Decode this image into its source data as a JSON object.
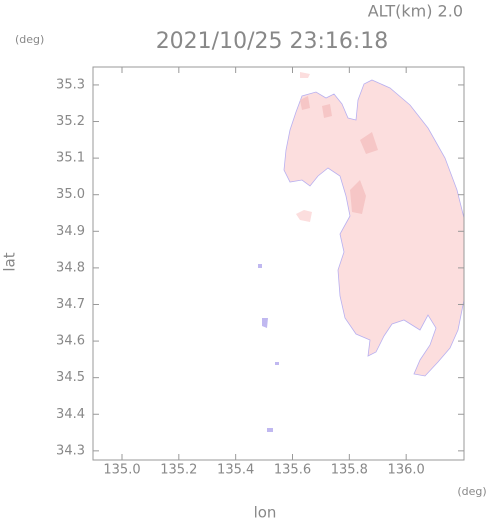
{
  "chart_data": {
    "type": "map",
    "title": "2021/10/25 23:16:18",
    "altitude_label": "ALT(km) 2.0",
    "y_unit": "(deg)",
    "x_unit": "(deg)",
    "x_label": "lon",
    "y_label": "lat",
    "xlim": [
      134.898,
      136.2035
    ],
    "ylim": [
      34.275,
      35.349
    ],
    "xticks": [
      {
        "value": 135,
        "label": "135.0"
      },
      135.2,
      135.4,
      135.6,
      135.8,
      {
        "value": 136,
        "label": "136.0"
      }
    ],
    "yticks": [
      34.3,
      34.4,
      34.5,
      34.6,
      34.7,
      34.8,
      34.9,
      {
        "value": 35,
        "label": "35.0"
      },
      35.1,
      35.2,
      35.3
    ]
  }
}
